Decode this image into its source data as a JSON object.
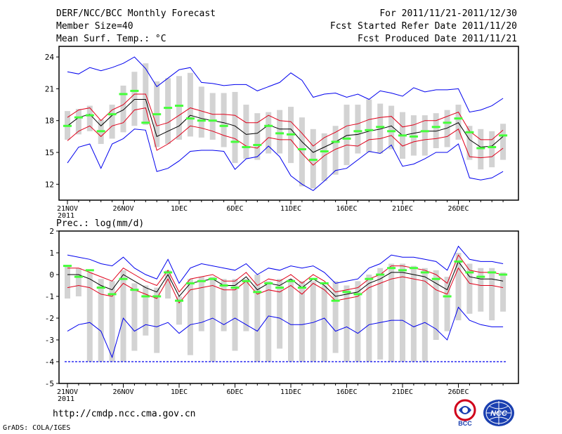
{
  "header": {
    "title": "DERF/NCC/BCC Monthly Forecast",
    "member_size": "Member Size=40",
    "temp_label": "Mean Surf. Temp.: °C",
    "period": "For 2011/11/21-2011/12/30",
    "fcst_started": "Fcst Started Refer Date 2011/11/20",
    "fcst_produced": "Fcst Produced Date 2011/11/21"
  },
  "footer": {
    "url": "http://cmdp.ncc.cma.gov.cn",
    "credit": "GrADS: COLA/IGES",
    "logo_left_text": "BCC",
    "logo_right_text": "NCC"
  },
  "colors": {
    "bar": "#d3d3d3",
    "ensemble_mean": "#000000",
    "std_band": "#e0001a",
    "extreme_range": "#0000ee",
    "marker": "#44ff3a"
  },
  "chart_data": [
    {
      "type": "box",
      "title": "Mean Surf. Temp.: °C",
      "ylim": [
        10.5,
        25
      ],
      "yticks": [
        12,
        15,
        18,
        21,
        24
      ],
      "xticks": [
        {
          "day": 1,
          "label": "21NOV",
          "sublabel": "2011"
        },
        {
          "day": 6,
          "label": "26NOV"
        },
        {
          "day": 11,
          "label": "1DEC"
        },
        {
          "day": 16,
          "label": "6DEC"
        },
        {
          "day": 21,
          "label": "11DEC"
        },
        {
          "day": 26,
          "label": "16DEC"
        },
        {
          "day": 31,
          "label": "21DEC"
        },
        {
          "day": 36,
          "label": "26DEC"
        }
      ],
      "days": [
        1,
        2,
        3,
        4,
        5,
        6,
        7,
        8,
        9,
        10,
        11,
        12,
        13,
        14,
        15,
        16,
        17,
        18,
        19,
        20,
        21,
        22,
        23,
        24,
        25,
        26,
        27,
        28,
        29,
        30,
        31,
        32,
        33,
        34,
        35,
        36,
        37,
        38,
        39,
        40
      ],
      "bar_top": [
        18.9,
        19.1,
        19.4,
        18.1,
        19.5,
        21.3,
        22.6,
        23.4,
        21.7,
        22.0,
        22.2,
        22.5,
        21.2,
        20.6,
        20.6,
        20.7,
        19.5,
        18.7,
        18.8,
        19.0,
        19.3,
        18.3,
        17.2,
        16.8,
        17.5,
        19.5,
        19.5,
        20.0,
        19.6,
        19.4,
        18.8,
        18.5,
        18.5,
        18.7,
        19.0,
        19.5,
        17.5,
        17.2,
        17.0,
        17.7
      ],
      "bar_bottom": [
        16.2,
        16.7,
        17.0,
        15.8,
        16.3,
        16.9,
        17.5,
        17.6,
        15.5,
        15.8,
        16.2,
        16.5,
        16.4,
        16.2,
        15.5,
        14.0,
        14.4,
        14.3,
        14.9,
        14.9,
        14.0,
        11.8,
        11.6,
        12.3,
        12.9,
        13.8,
        14.9,
        15.0,
        14.9,
        15.3,
        14.4,
        14.7,
        14.7,
        15.4,
        15.5,
        16.2,
        14.3,
        13.4,
        13.6,
        14.3
      ],
      "mean": [
        17.5,
        18.3,
        18.6,
        17.5,
        18.5,
        19.0,
        20.0,
        20.0,
        16.5,
        17.0,
        17.5,
        18.5,
        18.2,
        18.0,
        17.8,
        17.5,
        16.7,
        16.8,
        17.6,
        17.2,
        17.2,
        16.0,
        15.0,
        15.5,
        16.0,
        16.6,
        16.7,
        17.0,
        17.2,
        17.5,
        16.6,
        16.8,
        17.0,
        17.0,
        17.3,
        17.8,
        16.2,
        15.5,
        15.6,
        16.5
      ],
      "upper": [
        18.3,
        19.0,
        19.2,
        18.0,
        19.0,
        19.5,
        20.5,
        20.5,
        17.5,
        17.8,
        18.5,
        19.2,
        18.9,
        18.6,
        18.6,
        18.5,
        17.8,
        17.8,
        18.5,
        18.0,
        17.9,
        16.8,
        15.6,
        16.4,
        16.9,
        17.5,
        17.7,
        18.1,
        18.3,
        18.4,
        17.4,
        17.6,
        18.0,
        18.0,
        18.4,
        18.8,
        17.0,
        16.2,
        16.2,
        17.1
      ],
      "lower": [
        16.1,
        17.0,
        17.5,
        16.5,
        17.5,
        17.8,
        19.0,
        19.2,
        15.2,
        15.8,
        16.6,
        17.5,
        17.3,
        17.0,
        16.6,
        16.3,
        15.6,
        15.4,
        16.4,
        16.2,
        16.2,
        14.9,
        13.8,
        14.7,
        15.3,
        15.7,
        15.6,
        16.2,
        16.3,
        16.6,
        15.6,
        16.0,
        16.2,
        16.3,
        16.5,
        17.2,
        14.6,
        14.5,
        14.6,
        15.4
      ],
      "max": [
        22.6,
        22.4,
        23.0,
        22.7,
        23.0,
        23.4,
        24.0,
        22.9,
        21.2,
        22.0,
        22.8,
        23.0,
        21.6,
        21.5,
        21.3,
        21.4,
        21.4,
        20.8,
        21.2,
        21.6,
        22.5,
        21.8,
        20.2,
        20.5,
        20.6,
        20.2,
        20.5,
        20.0,
        20.8,
        20.6,
        20.3,
        21.1,
        20.7,
        20.9,
        20.9,
        21.0,
        18.8,
        19.0,
        19.4,
        20.1
      ],
      "min": [
        14.0,
        15.5,
        15.8,
        13.5,
        15.8,
        16.3,
        17.2,
        17.1,
        13.2,
        13.5,
        14.2,
        15.1,
        15.2,
        15.2,
        15.1,
        13.4,
        14.4,
        14.6,
        15.6,
        14.6,
        12.8,
        12.0,
        11.4,
        12.3,
        13.3,
        13.5,
        14.3,
        15.1,
        14.9,
        15.7,
        13.7,
        13.9,
        14.4,
        15.0,
        15.0,
        15.8,
        12.6,
        12.4,
        12.6,
        13.2
      ],
      "marker": [
        17.5,
        18.3,
        18.5,
        17.0,
        18.6,
        20.5,
        20.8,
        17.8,
        18.6,
        19.2,
        19.4,
        18.2,
        18.0,
        18.0,
        17.5,
        16.0,
        15.5,
        15.7,
        17.5,
        16.8,
        16.7,
        15.3,
        14.3,
        15.1,
        16.0,
        16.3,
        17.0,
        17.1,
        17.4,
        17.0,
        16.6,
        16.5,
        17.0,
        17.4,
        17.8,
        18.2,
        16.9,
        15.4,
        15.5,
        16.6
      ]
    },
    {
      "type": "box",
      "title": "Prec.: log(mm/d)",
      "ylim": [
        -5,
        2
      ],
      "yticks": [
        -5,
        -4,
        -3,
        -2,
        -1,
        0,
        1,
        2
      ],
      "xticks": [
        {
          "day": 1,
          "label": "21NOV",
          "sublabel": "2011"
        },
        {
          "day": 6,
          "label": "26NOV"
        },
        {
          "day": 11,
          "label": "1DEC"
        },
        {
          "day": 16,
          "label": "6DEC"
        },
        {
          "day": 21,
          "label": "11DEC"
        },
        {
          "day": 26,
          "label": "16DEC"
        },
        {
          "day": 31,
          "label": "21DEC"
        },
        {
          "day": 36,
          "label": "26DEC"
        }
      ],
      "days": [
        1,
        2,
        3,
        4,
        5,
        6,
        7,
        8,
        9,
        10,
        11,
        12,
        13,
        14,
        15,
        16,
        17,
        18,
        19,
        20,
        21,
        22,
        23,
        24,
        25,
        26,
        27,
        28,
        29,
        30,
        31,
        32,
        33,
        34,
        35,
        36,
        37,
        38,
        39,
        40
      ],
      "bar_top": [
        0.4,
        0.3,
        0.1,
        -0.2,
        -0.3,
        0.2,
        -0.4,
        -0.5,
        -0.6,
        0.2,
        -1.0,
        -0.2,
        -0.1,
        -0.1,
        -0.2,
        -0.2,
        -0.2,
        0.0,
        -0.3,
        -0.2,
        -0.2,
        -0.3,
        -0.3,
        -0.5,
        -0.3,
        -0.5,
        -0.3,
        0.0,
        0.3,
        0.5,
        0.5,
        0.4,
        0.3,
        0.2,
        -0.1,
        1.0,
        0.5,
        0.3,
        0.3,
        0.1
      ],
      "bar_bottom": [
        -1.1,
        -1.0,
        -4.0,
        -4.0,
        -4.0,
        -4.0,
        -3.5,
        -2.8,
        -3.6,
        -1.1,
        -2.3,
        -3.7,
        -2.6,
        -4.0,
        -2.6,
        -3.5,
        -2.6,
        -4.0,
        -4.0,
        -3.4,
        -4.0,
        -4.0,
        -4.0,
        -4.0,
        -3.6,
        -4.0,
        -4.0,
        -4.0,
        -3.9,
        -4.0,
        -4.0,
        -4.0,
        -4.0,
        -3.0,
        -2.6,
        -2.1,
        -1.8,
        -1.7,
        -2.1,
        -1.7
      ],
      "mean": [
        0.0,
        0.0,
        -0.2,
        -0.5,
        -0.7,
        0.0,
        -0.3,
        -0.6,
        -0.8,
        0.0,
        -1.0,
        -0.4,
        -0.3,
        -0.2,
        -0.5,
        -0.5,
        -0.1,
        -0.7,
        -0.4,
        -0.5,
        -0.2,
        -0.6,
        -0.2,
        -0.5,
        -1.0,
        -0.9,
        -0.8,
        -0.4,
        -0.2,
        0.1,
        0.1,
        0.0,
        -0.1,
        -0.4,
        -0.7,
        0.6,
        -0.1,
        -0.2,
        -0.2,
        -0.3
      ],
      "upper": [
        0.3,
        0.3,
        0.1,
        -0.1,
        -0.3,
        0.3,
        0.0,
        -0.3,
        -0.5,
        0.2,
        -0.8,
        -0.2,
        -0.1,
        0.0,
        -0.3,
        -0.3,
        0.1,
        -0.5,
        -0.2,
        -0.3,
        0.0,
        -0.4,
        0.0,
        -0.3,
        -0.8,
        -0.7,
        -0.6,
        -0.2,
        0.0,
        0.4,
        0.4,
        0.3,
        0.2,
        0.0,
        -0.4,
        0.9,
        0.2,
        0.1,
        0.1,
        0.0
      ],
      "lower": [
        -0.6,
        -0.5,
        -0.6,
        -0.9,
        -1.0,
        -0.4,
        -0.7,
        -0.9,
        -1.1,
        -0.2,
        -1.3,
        -0.7,
        -0.6,
        -0.5,
        -0.7,
        -0.7,
        -0.3,
        -0.9,
        -0.7,
        -0.8,
        -0.5,
        -0.9,
        -0.4,
        -0.7,
        -1.2,
        -1.1,
        -1.0,
        -0.6,
        -0.4,
        -0.2,
        -0.1,
        -0.2,
        -0.3,
        -0.7,
        -0.9,
        0.3,
        -0.4,
        -0.5,
        -0.5,
        -0.6
      ],
      "max": [
        0.9,
        0.8,
        0.7,
        0.5,
        0.4,
        0.8,
        0.3,
        0.0,
        -0.2,
        0.7,
        -0.4,
        0.3,
        0.5,
        0.4,
        0.3,
        0.2,
        0.5,
        0.0,
        0.3,
        0.2,
        0.4,
        0.3,
        0.4,
        0.1,
        -0.4,
        -0.3,
        -0.2,
        0.3,
        0.5,
        0.9,
        0.8,
        0.8,
        0.7,
        0.6,
        0.2,
        1.3,
        0.7,
        0.6,
        0.6,
        0.5
      ],
      "min": [
        -2.6,
        -2.3,
        -2.2,
        -2.6,
        -3.8,
        -2.0,
        -2.6,
        -2.3,
        -2.4,
        -2.2,
        -2.7,
        -2.3,
        -2.2,
        -2.0,
        -2.3,
        -2.0,
        -2.3,
        -2.6,
        -1.9,
        -2.0,
        -2.3,
        -2.3,
        -2.2,
        -2.0,
        -2.6,
        -2.4,
        -2.7,
        -2.3,
        -2.2,
        -2.1,
        -2.1,
        -2.4,
        -2.2,
        -2.5,
        -3.0,
        -1.5,
        -2.1,
        -2.3,
        -2.4,
        -2.4
      ],
      "marker": [
        0.4,
        -0.1,
        0.2,
        -0.6,
        -0.9,
        -0.2,
        -0.7,
        -1.0,
        -1.0,
        0.1,
        -1.2,
        -0.4,
        -0.3,
        -0.2,
        -0.5,
        -0.6,
        -0.3,
        -0.8,
        -0.4,
        -0.6,
        -0.3,
        -0.6,
        -0.2,
        -0.4,
        -1.2,
        -0.8,
        -0.9,
        -0.2,
        0.0,
        0.3,
        0.2,
        0.3,
        0.1,
        -0.2,
        -1.0,
        0.6,
        0.1,
        -0.1,
        0.1,
        0.0
      ],
      "baseline": -4
    }
  ]
}
